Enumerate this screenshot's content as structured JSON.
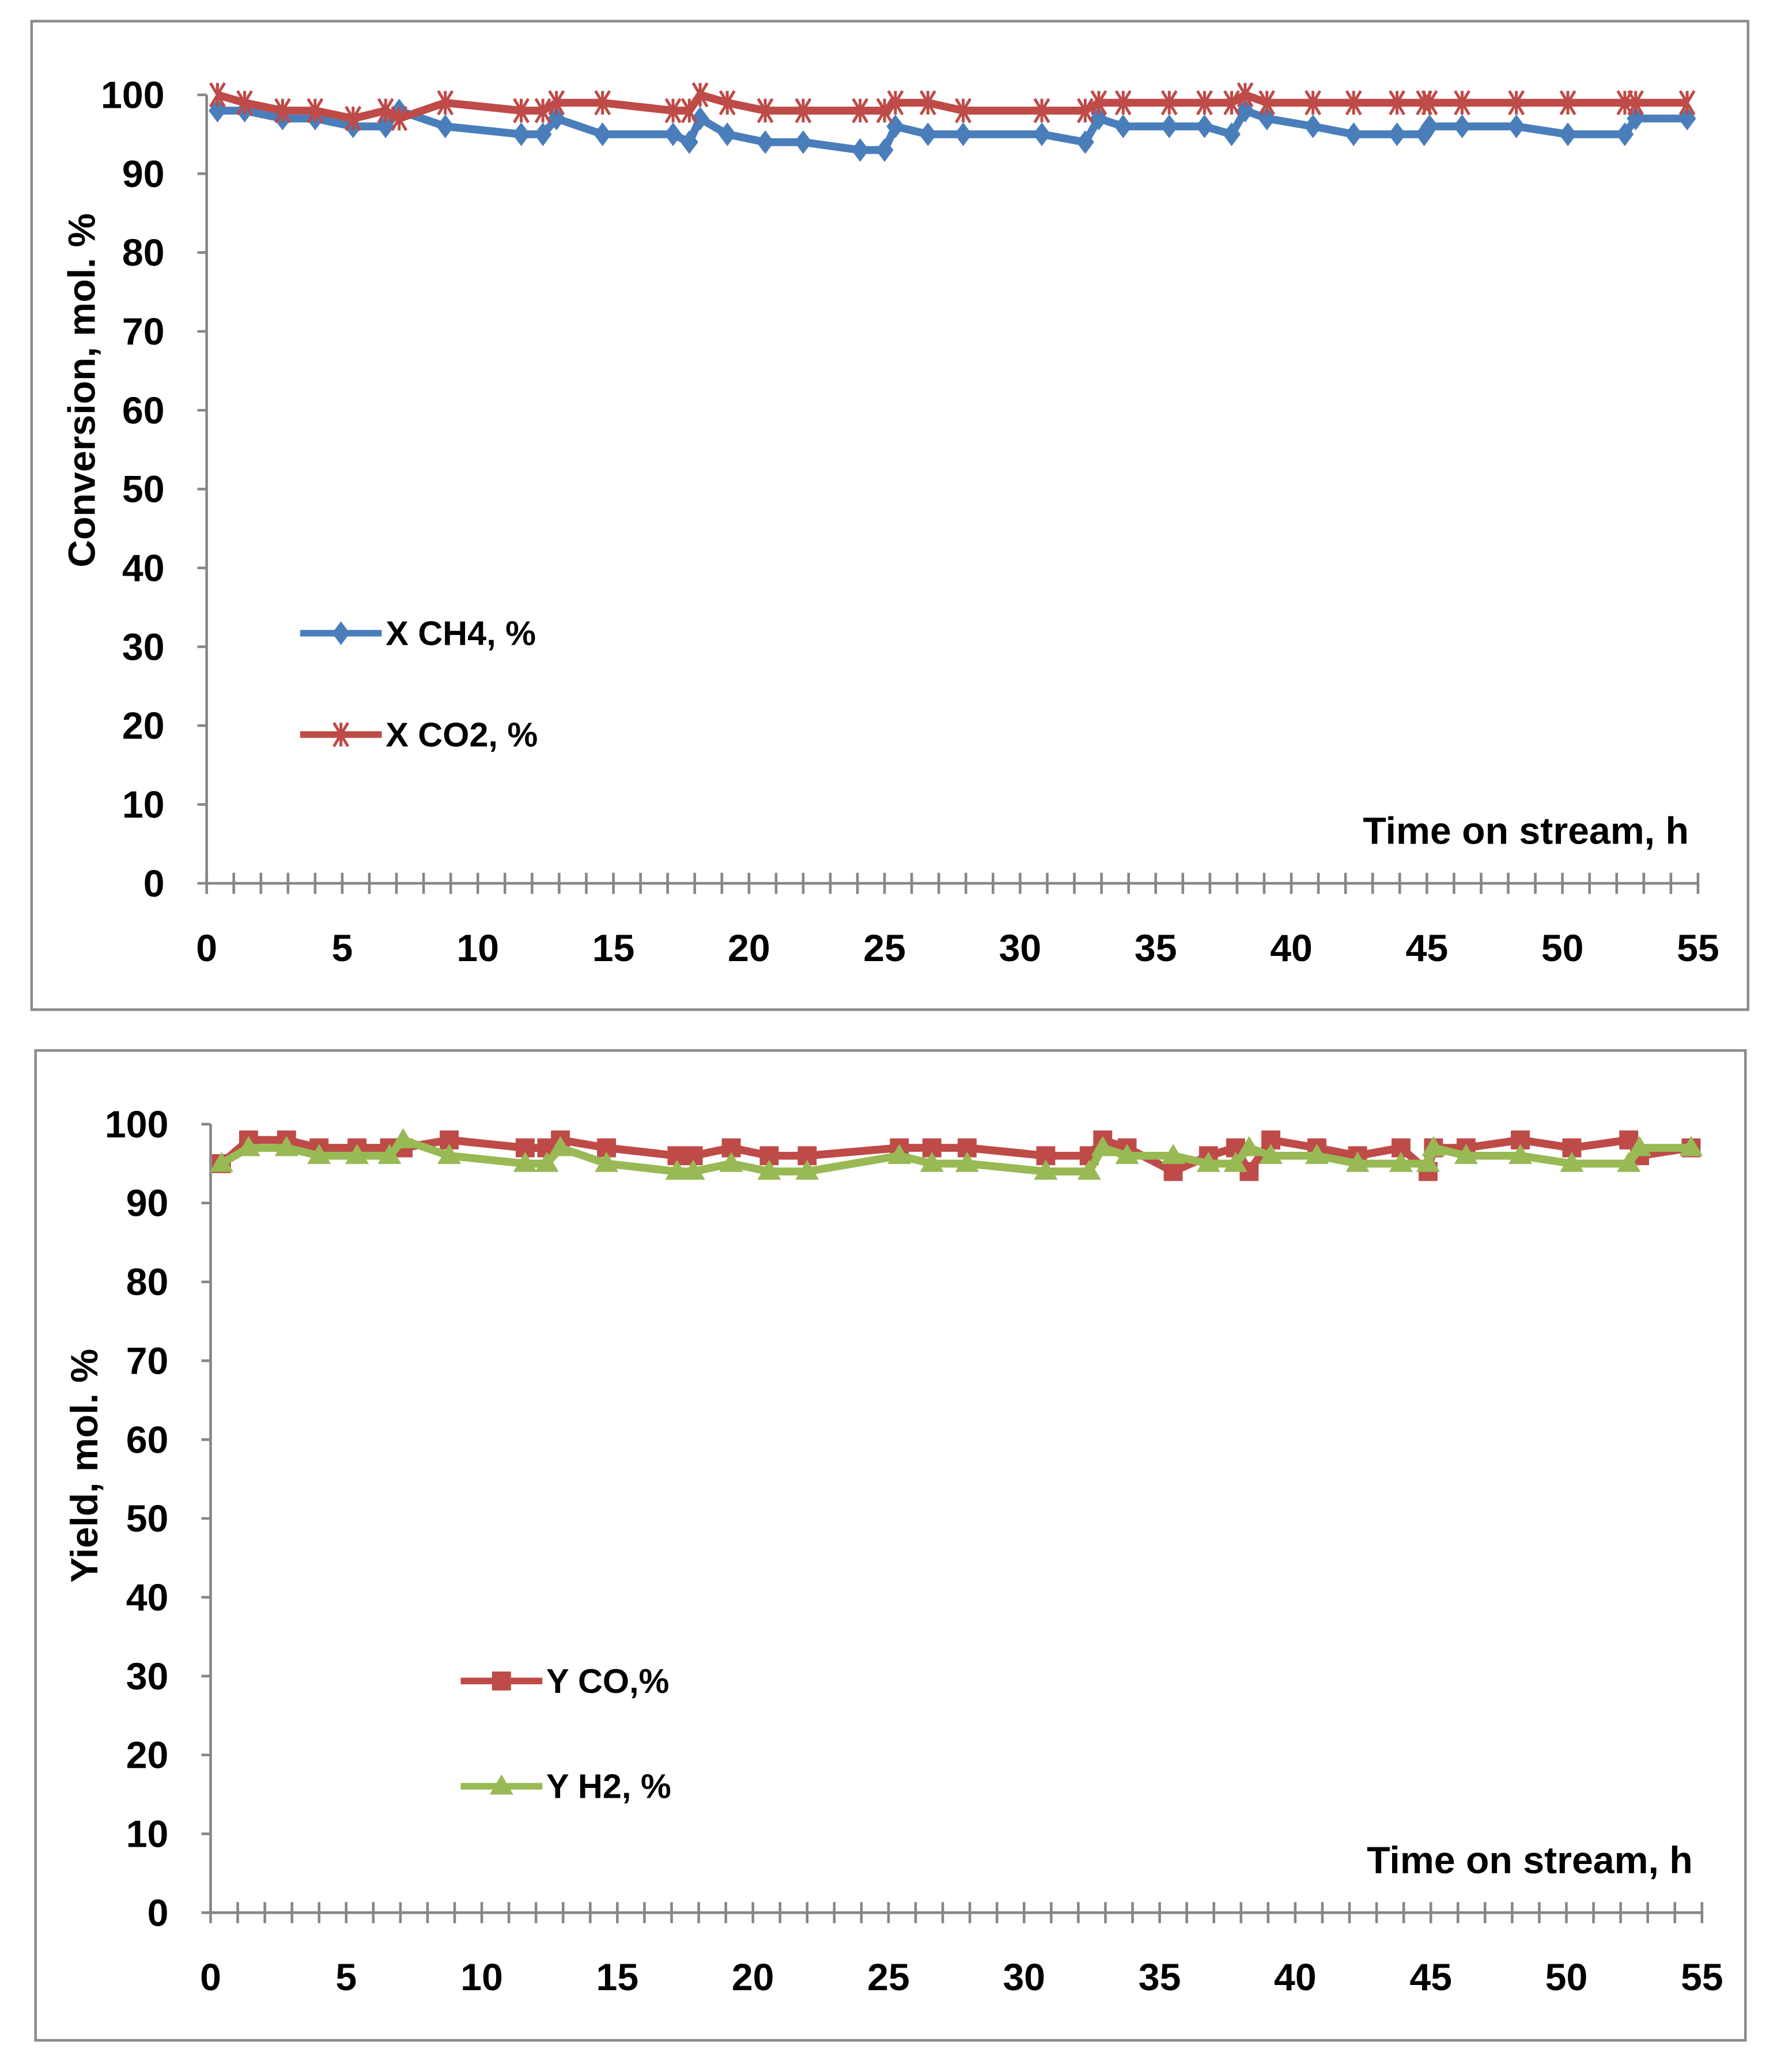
{
  "chart_data": [
    {
      "type": "line",
      "title": "",
      "xlabel": "Time on stream, h",
      "ylabel": "Conversion, mol. %",
      "xlim": [
        0,
        55
      ],
      "ylim": [
        0,
        100
      ],
      "xticks": [
        "0",
        "5",
        "10",
        "15",
        "20",
        "25",
        "30",
        "35",
        "40",
        "45",
        "50",
        "55"
      ],
      "yticks": [
        "0",
        "10",
        "20",
        "30",
        "40",
        "50",
        "60",
        "70",
        "80",
        "90",
        "100"
      ],
      "grid": false,
      "legend_position": "center-left",
      "x": [
        0.4,
        1.4,
        2.8,
        4,
        5.4,
        6.6,
        7.1,
        8.8,
        11.6,
        12.4,
        12.9,
        14.6,
        17.2,
        17.8,
        18.2,
        19.2,
        20.6,
        22,
        24.1,
        25,
        25.4,
        26.6,
        27.9,
        30.8,
        32.4,
        32.9,
        33.8,
        35.5,
        36.8,
        37.8,
        38.3,
        39.1,
        40.8,
        42.3,
        43.9,
        44.9,
        45.1,
        46.3,
        48.3,
        50.2,
        52.3,
        52.7,
        54.6
      ],
      "series": [
        {
          "name": "X CH4, %",
          "color": "#4a7ebb",
          "marker": "diamond",
          "values": [
            98,
            98,
            97,
            97,
            96,
            96,
            98,
            96,
            95,
            95,
            97,
            95,
            95,
            94,
            97,
            95,
            94,
            94,
            93,
            93,
            96,
            95,
            95,
            95,
            94,
            97,
            96,
            96,
            96,
            95,
            98,
            97,
            96,
            95,
            95,
            95,
            96,
            96,
            96,
            95,
            95,
            97,
            97
          ]
        },
        {
          "name": "X CO2, %",
          "color": "#be4b48",
          "marker": "star",
          "values": [
            100,
            99,
            98,
            98,
            97,
            98,
            97,
            99,
            98,
            98,
            99,
            99,
            98,
            98,
            100,
            99,
            98,
            98,
            98,
            98,
            99,
            99,
            98,
            98,
            98,
            99,
            99,
            99,
            99,
            99,
            100,
            99,
            99,
            99,
            99,
            99,
            99,
            99,
            99,
            99,
            99,
            99,
            99
          ]
        }
      ]
    },
    {
      "type": "line",
      "title": "",
      "xlabel": "Time on stream, h",
      "ylabel": "Yield, mol. %",
      "xlim": [
        0,
        55
      ],
      "ylim": [
        0,
        100
      ],
      "xticks": [
        "0",
        "5",
        "10",
        "15",
        "20",
        "25",
        "30",
        "35",
        "40",
        "45",
        "50",
        "55"
      ],
      "yticks": [
        "0",
        "10",
        "20",
        "30",
        "40",
        "50",
        "60",
        "70",
        "80",
        "90",
        "100"
      ],
      "grid": false,
      "legend_position": "center-left",
      "x": [
        0.4,
        1.4,
        2.8,
        4,
        5.4,
        6.6,
        7.1,
        8.8,
        11.6,
        12.4,
        12.9,
        14.6,
        17.2,
        17.8,
        19.2,
        20.6,
        22,
        25.4,
        26.6,
        27.9,
        30.8,
        32.4,
        32.9,
        33.8,
        35.5,
        36.8,
        37.8,
        38.3,
        39.1,
        40.8,
        42.3,
        43.9,
        44.9,
        45.1,
        46.3,
        48.3,
        50.2,
        52.3,
        52.7,
        54.6
      ],
      "series": [
        {
          "name": "Y CO,%",
          "color": "#be4b48",
          "marker": "square",
          "values": [
            95,
            98,
            98,
            97,
            97,
            97,
            97,
            98,
            97,
            97,
            98,
            97,
            96,
            96,
            97,
            96,
            96,
            97,
            97,
            97,
            96,
            96,
            98,
            97,
            94,
            96,
            97,
            94,
            98,
            97,
            96,
            97,
            94,
            97,
            97,
            98,
            97,
            98,
            96,
            97
          ]
        },
        {
          "name": "Y H2, %",
          "color": "#98b954",
          "marker": "triangle",
          "values": [
            95,
            97,
            97,
            96,
            96,
            96,
            98,
            96,
            95,
            95,
            97,
            95,
            94,
            94,
            95,
            94,
            94,
            96,
            95,
            95,
            94,
            94,
            97,
            96,
            96,
            95,
            95,
            97,
            96,
            96,
            95,
            95,
            95,
            97,
            96,
            96,
            95,
            95,
            97,
            97
          ]
        }
      ]
    }
  ]
}
